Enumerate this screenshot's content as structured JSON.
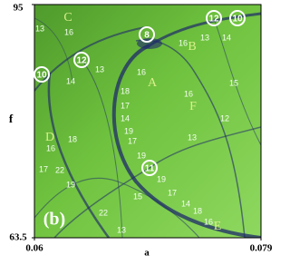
{
  "chart_data": {
    "type": "image",
    "xlabel": "a",
    "ylabel": "f",
    "xlim": [
      0.06,
      0.079
    ],
    "ylim": [
      63.5,
      95
    ],
    "xticks": [
      0.06,
      0.079
    ],
    "yticks": [
      63.5,
      95
    ],
    "panel_label": "(b)",
    "region_labels": [
      "C",
      "B",
      "A",
      "F",
      "D",
      "E"
    ],
    "circled_labels": [
      "12",
      "10",
      "8",
      "12",
      "10",
      "11"
    ],
    "annotations": [
      "13",
      "16",
      "16",
      "13",
      "14",
      "13",
      "14",
      "16",
      "15",
      "18",
      "16",
      "17",
      "14",
      "12",
      "19",
      "17",
      "13",
      "18",
      "16",
      "19",
      "17",
      "22",
      "19",
      "19",
      "17",
      "14",
      "15",
      "22",
      "18",
      "16",
      "13"
    ]
  }
}
